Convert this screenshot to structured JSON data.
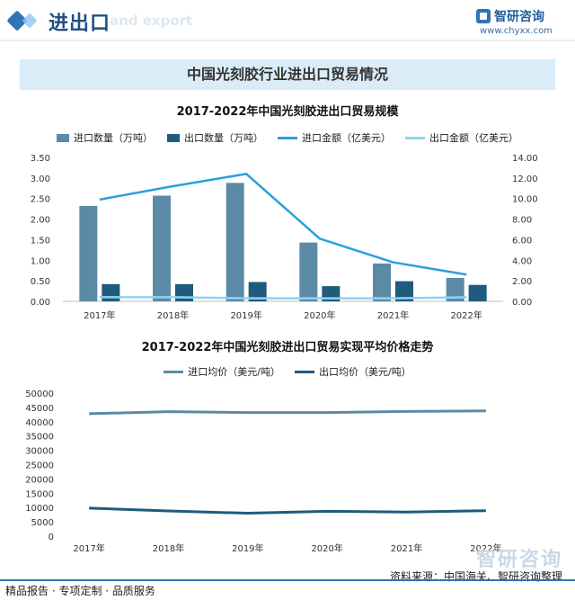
{
  "header": {
    "title": "进出口",
    "subtitle": "and export",
    "brand": "智研咨询",
    "url": "www.chyxx.com"
  },
  "banner": {
    "title": "中国光刻胶行业进出口贸易情况"
  },
  "chart_data": [
    {
      "type": "bar",
      "title": "2017-2022年中国光刻胶进出口贸易规模",
      "categories": [
        "2017年",
        "2018年",
        "2019年",
        "2020年",
        "2021年",
        "2022年"
      ],
      "series": [
        {
          "name": "进口数量（万吨）",
          "kind": "bar",
          "axis": "left",
          "color": "#5b8aa6",
          "values": [
            2.32,
            2.57,
            2.88,
            1.43,
            0.92,
            0.57
          ]
        },
        {
          "name": "出口数量（万吨）",
          "kind": "bar",
          "axis": "left",
          "color": "#1f5b7c",
          "values": [
            0.42,
            0.42,
            0.47,
            0.37,
            0.49,
            0.4
          ]
        },
        {
          "name": "进口金额（亿美元）",
          "kind": "line",
          "axis": "right",
          "color": "#2aa0db",
          "values": [
            9.9,
            11.2,
            12.4,
            6.1,
            3.8,
            2.6
          ]
        },
        {
          "name": "出口金额（亿美元）",
          "kind": "line",
          "axis": "right",
          "color": "#8fd3ef",
          "values": [
            0.4,
            0.4,
            0.3,
            0.3,
            0.3,
            0.4
          ]
        }
      ],
      "y_left": {
        "min": 0,
        "max": 3.5,
        "ticks": [
          "0.00",
          "0.50",
          "1.00",
          "1.50",
          "2.00",
          "2.50",
          "3.00",
          "3.50"
        ]
      },
      "y_right": {
        "min": 0,
        "max": 14,
        "ticks": [
          "0.00",
          "2.00",
          "4.00",
          "6.00",
          "8.00",
          "10.00",
          "12.00",
          "14.00"
        ]
      },
      "grid": false,
      "legend": "top"
    },
    {
      "type": "line",
      "title": "2017-2022年中国光刻胶进出口贸易实现平均价格走势",
      "categories": [
        "2017年",
        "2018年",
        "2019年",
        "2020年",
        "2021年",
        "2022年"
      ],
      "series": [
        {
          "name": "进口均价（美元/吨）",
          "color": "#5b8aa6",
          "values": [
            42800,
            43500,
            43200,
            43200,
            43600,
            43800
          ]
        },
        {
          "name": "出口均价（美元/吨）",
          "color": "#1f5b7c",
          "values": [
            9800,
            8800,
            8000,
            8700,
            8400,
            8900
          ]
        }
      ],
      "y": {
        "min": 0,
        "max": 50000,
        "ticks": [
          "0",
          "5000",
          "10000",
          "15000",
          "20000",
          "25000",
          "30000",
          "35000",
          "40000",
          "45000",
          "50000"
        ]
      },
      "grid": false,
      "legend": "top"
    }
  ],
  "footer": {
    "left": "精品报告 · 专项定制 · 品质服务",
    "right": "资料来源：中国海关、智研咨询整理",
    "watermark": "智研咨询"
  }
}
